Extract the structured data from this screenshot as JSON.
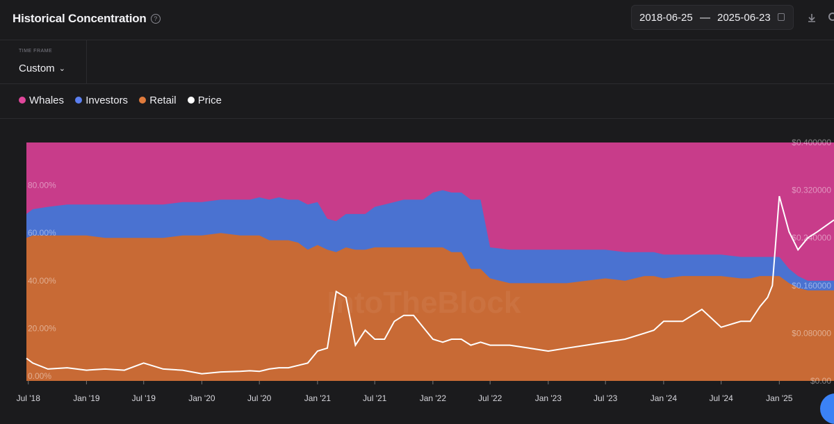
{
  "header": {
    "title": "Historical Concentration",
    "help_icon": "question-circle-icon",
    "date_start": "2018-06-25",
    "date_sep": "—",
    "date_end": "2025-06-23",
    "calendar_icon": "calendar-icon",
    "download_icon": "download-icon"
  },
  "timeframe": {
    "label": "TIME FRAME",
    "value": "Custom",
    "chevron_icon": "chevron-down-icon"
  },
  "colors": {
    "whales": "#c83c8a",
    "investors": "#4a72d1",
    "retail": "#c86a35",
    "price": "#ffffff",
    "background": "#1b1b1d"
  },
  "chart_data": {
    "type": "area",
    "stacked": true,
    "x_tick_labels": [
      "Jul '18",
      "Jan '19",
      "Jul '19",
      "Jan '20",
      "Jul '20",
      "Jan '21",
      "Jul '21",
      "Jan '22",
      "Jul '22",
      "Jan '23",
      "Jul '23",
      "Jan '24",
      "Jul '24",
      "Jan '25"
    ],
    "x": [
      "2018-06-25",
      "2018-07-15",
      "2018-09-01",
      "2018-11-01",
      "2019-01-01",
      "2019-03-01",
      "2019-05-01",
      "2019-07-01",
      "2019-09-01",
      "2019-11-01",
      "2020-01-01",
      "2020-03-01",
      "2020-05-01",
      "2020-06-01",
      "2020-07-01",
      "2020-08-01",
      "2020-09-01",
      "2020-10-01",
      "2020-11-01",
      "2020-12-01",
      "2021-01-01",
      "2021-02-01",
      "2021-03-01",
      "2021-04-01",
      "2021-05-01",
      "2021-06-01",
      "2021-07-01",
      "2021-08-01",
      "2021-09-01",
      "2021-10-01",
      "2021-11-01",
      "2021-12-01",
      "2022-01-01",
      "2022-02-01",
      "2022-03-01",
      "2022-04-01",
      "2022-05-01",
      "2022-06-01",
      "2022-07-01",
      "2022-09-01",
      "2022-11-01",
      "2023-01-01",
      "2023-03-01",
      "2023-05-01",
      "2023-07-01",
      "2023-09-01",
      "2023-11-01",
      "2023-12-01",
      "2024-01-01",
      "2024-03-01",
      "2024-05-01",
      "2024-07-01",
      "2024-09-01",
      "2024-10-01",
      "2024-11-01",
      "2024-11-25",
      "2024-12-10",
      "2025-01-01",
      "2025-02-01",
      "2025-03-01",
      "2025-04-01",
      "2025-05-01",
      "2025-06-23"
    ],
    "y_left_ticks": [
      "0.00%",
      "20.00%",
      "40.00%",
      "60.00%",
      "80.00%"
    ],
    "y_right_ticks": [
      "$0.00",
      "$0.080000",
      "$0.160000",
      "$0.240000",
      "$0.320000",
      "$0.400000"
    ],
    "y_left_range": [
      0,
      100
    ],
    "y_right_range": [
      0,
      0.4
    ],
    "series": [
      {
        "name": "Whales",
        "type": "area",
        "values": [
          30,
          28,
          27,
          26,
          26,
          26,
          26,
          26,
          26,
          25,
          25,
          24,
          24,
          24,
          23,
          24,
          23,
          24,
          24,
          26,
          25,
          32,
          33,
          30,
          30,
          30,
          27,
          26,
          25,
          24,
          24,
          24,
          21,
          20,
          21,
          21,
          24,
          24,
          44,
          45,
          45,
          45,
          45,
          45,
          45,
          46,
          46,
          46,
          47,
          47,
          47,
          47,
          48,
          48,
          48,
          48,
          48,
          48,
          53,
          56,
          58,
          58,
          58
        ]
      },
      {
        "name": "Investors",
        "type": "area",
        "values": [
          10,
          11,
          12,
          13,
          13,
          14,
          14,
          14,
          14,
          14,
          14,
          14,
          15,
          15,
          16,
          17,
          18,
          17,
          18,
          19,
          18,
          13,
          13,
          14,
          15,
          15,
          17,
          18,
          19,
          20,
          20,
          20,
          23,
          24,
          25,
          25,
          29,
          29,
          13,
          14,
          14,
          14,
          14,
          13,
          12,
          12,
          10,
          10,
          10,
          9,
          9,
          9,
          9,
          9,
          8,
          8,
          8,
          8,
          6,
          5,
          4,
          4,
          4
        ]
      },
      {
        "name": "Retail",
        "type": "area",
        "values": [
          60,
          61,
          61,
          61,
          61,
          60,
          60,
          60,
          60,
          61,
          61,
          62,
          61,
          61,
          61,
          59,
          59,
          59,
          58,
          55,
          57,
          55,
          54,
          56,
          55,
          55,
          56,
          56,
          56,
          56,
          56,
          56,
          56,
          56,
          54,
          54,
          47,
          47,
          43,
          41,
          41,
          41,
          41,
          42,
          43,
          42,
          44,
          44,
          43,
          44,
          44,
          44,
          43,
          43,
          44,
          44,
          44,
          44,
          41,
          39,
          38,
          38,
          38
        ]
      },
      {
        "name": "Price",
        "type": "line",
        "axis": "right",
        "values": [
          0.038,
          0.03,
          0.02,
          0.022,
          0.018,
          0.02,
          0.018,
          0.03,
          0.02,
          0.018,
          0.012,
          0.015,
          0.016,
          0.017,
          0.016,
          0.02,
          0.022,
          0.022,
          0.026,
          0.03,
          0.05,
          0.055,
          0.15,
          0.14,
          0.06,
          0.085,
          0.07,
          0.07,
          0.1,
          0.11,
          0.11,
          0.09,
          0.07,
          0.065,
          0.07,
          0.07,
          0.06,
          0.065,
          0.06,
          0.06,
          0.055,
          0.05,
          0.055,
          0.06,
          0.065,
          0.07,
          0.08,
          0.085,
          0.1,
          0.1,
          0.12,
          0.09,
          0.1,
          0.1,
          0.125,
          0.14,
          0.16,
          0.31,
          0.25,
          0.22,
          0.24,
          0.25,
          0.27
        ]
      }
    ]
  }
}
